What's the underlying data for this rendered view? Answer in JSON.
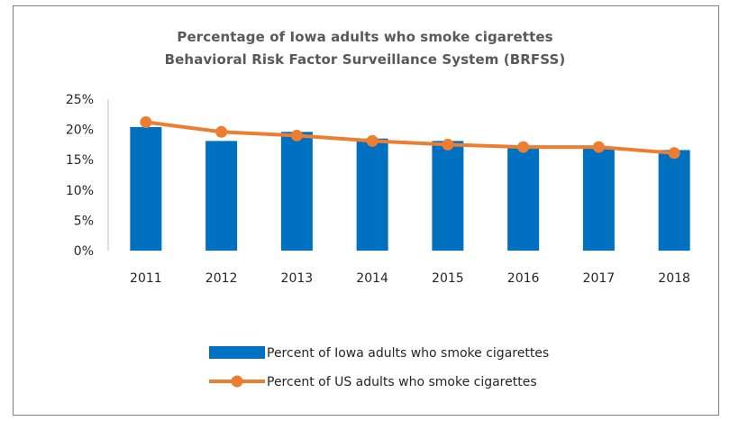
{
  "chart_data": {
    "type": "bar",
    "title": "Percentage of Iowa adults who smoke cigarettes",
    "subtitle": "Behavioral Risk Factor Surveillance System (BRFSS)",
    "categories": [
      "2011",
      "2012",
      "2013",
      "2014",
      "2015",
      "2016",
      "2017",
      "2018"
    ],
    "series": [
      {
        "name": "Percent of Iowa adults who smoke cigarettes",
        "kind": "bar",
        "color": "#0070c0",
        "values": [
          20.4,
          18.1,
          19.6,
          18.5,
          18.1,
          17.1,
          17.1,
          16.6
        ]
      },
      {
        "name": "Percent of US adults who smoke cigarettes",
        "kind": "line",
        "color": "#ed7d31",
        "values": [
          21.2,
          19.6,
          19.0,
          18.1,
          17.5,
          17.1,
          17.1,
          16.1
        ]
      }
    ],
    "yticks": [
      "0%",
      "5%",
      "10%",
      "15%",
      "20%",
      "25%"
    ],
    "ylim": [
      0,
      25
    ],
    "grid": false,
    "legend_position": "bottom"
  }
}
